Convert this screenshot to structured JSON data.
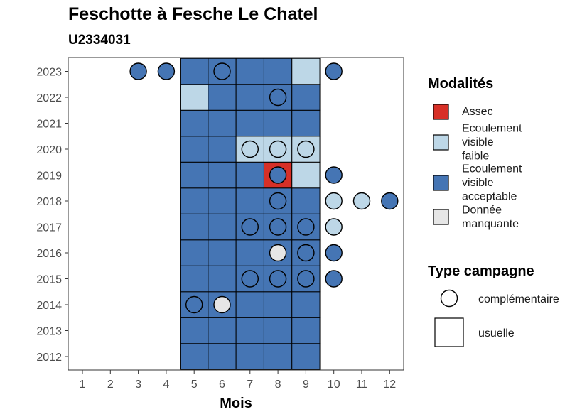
{
  "title": "Feschotte à Fesche Le Chatel",
  "subtitle": "U2334031",
  "chart_data": {
    "type": "heatmap",
    "title": "Feschotte à Fesche Le Chatel",
    "subtitle": "U2334031",
    "xlabel": "Mois",
    "ylabel": "",
    "x_ticks": [
      1,
      2,
      3,
      4,
      5,
      6,
      7,
      8,
      9,
      10,
      11,
      12
    ],
    "y_ticks": [
      2012,
      2013,
      2014,
      2015,
      2016,
      2017,
      2018,
      2019,
      2020,
      2021,
      2022,
      2023
    ],
    "colors": {
      "Assec": "#d73027",
      "Ecoulement visible faible": "#bdd7e7",
      "Ecoulement visible acceptable": "#4575b4",
      "Donnée manquante": "#e6e6e6"
    },
    "tiles_usuelle": [
      {
        "year": 2012,
        "months": [
          5,
          6,
          7,
          8,
          9
        ],
        "values": [
          "Ecoulement visible acceptable",
          "Ecoulement visible acceptable",
          "Ecoulement visible acceptable",
          "Ecoulement visible acceptable",
          "Ecoulement visible acceptable"
        ]
      },
      {
        "year": 2013,
        "months": [
          5,
          6,
          7,
          8,
          9
        ],
        "values": [
          "Ecoulement visible acceptable",
          "Ecoulement visible acceptable",
          "Ecoulement visible acceptable",
          "Ecoulement visible acceptable",
          "Ecoulement visible acceptable"
        ]
      },
      {
        "year": 2014,
        "months": [
          5,
          6,
          7,
          8,
          9
        ],
        "values": [
          "Ecoulement visible acceptable",
          "Ecoulement visible acceptable",
          "Ecoulement visible acceptable",
          "Ecoulement visible acceptable",
          "Ecoulement visible acceptable"
        ]
      },
      {
        "year": 2015,
        "months": [
          5,
          6,
          7,
          8,
          9
        ],
        "values": [
          "Ecoulement visible acceptable",
          "Ecoulement visible acceptable",
          "Ecoulement visible acceptable",
          "Ecoulement visible acceptable",
          "Ecoulement visible acceptable"
        ]
      },
      {
        "year": 2016,
        "months": [
          5,
          6,
          7,
          8,
          9
        ],
        "values": [
          "Ecoulement visible acceptable",
          "Ecoulement visible acceptable",
          "Ecoulement visible acceptable",
          "Ecoulement visible acceptable",
          "Ecoulement visible acceptable"
        ]
      },
      {
        "year": 2017,
        "months": [
          5,
          6,
          7,
          8,
          9
        ],
        "values": [
          "Ecoulement visible acceptable",
          "Ecoulement visible acceptable",
          "Ecoulement visible acceptable",
          "Ecoulement visible acceptable",
          "Ecoulement visible acceptable"
        ]
      },
      {
        "year": 2018,
        "months": [
          5,
          6,
          7,
          8,
          9
        ],
        "values": [
          "Ecoulement visible acceptable",
          "Ecoulement visible acceptable",
          "Ecoulement visible acceptable",
          "Ecoulement visible acceptable",
          "Ecoulement visible acceptable"
        ]
      },
      {
        "year": 2019,
        "months": [
          5,
          6,
          7,
          8,
          9
        ],
        "values": [
          "Ecoulement visible acceptable",
          "Ecoulement visible acceptable",
          "Ecoulement visible acceptable",
          "Assec",
          "Ecoulement visible faible"
        ]
      },
      {
        "year": 2020,
        "months": [
          5,
          6,
          7,
          8,
          9
        ],
        "values": [
          "Ecoulement visible acceptable",
          "Ecoulement visible acceptable",
          "Ecoulement visible faible",
          "Ecoulement visible faible",
          "Ecoulement visible faible"
        ]
      },
      {
        "year": 2021,
        "months": [
          5,
          6,
          7,
          8,
          9
        ],
        "values": [
          "Ecoulement visible acceptable",
          "Ecoulement visible acceptable",
          "Ecoulement visible acceptable",
          "Ecoulement visible acceptable",
          "Ecoulement visible acceptable"
        ]
      },
      {
        "year": 2022,
        "months": [
          5,
          6,
          7,
          8,
          9
        ],
        "values": [
          "Ecoulement visible faible",
          "Ecoulement visible acceptable",
          "Ecoulement visible acceptable",
          "Ecoulement visible acceptable",
          "Ecoulement visible acceptable"
        ]
      },
      {
        "year": 2023,
        "months": [
          5,
          6,
          7,
          8,
          9
        ],
        "values": [
          "Ecoulement visible acceptable",
          "Ecoulement visible acceptable",
          "Ecoulement visible acceptable",
          "Ecoulement visible acceptable",
          "Ecoulement visible faible"
        ]
      }
    ],
    "points_complementaire": [
      {
        "year": 2023,
        "month": 3,
        "value": "Ecoulement visible acceptable"
      },
      {
        "year": 2023,
        "month": 4,
        "value": "Ecoulement visible acceptable"
      },
      {
        "year": 2023,
        "month": 6,
        "value": "Ecoulement visible acceptable"
      },
      {
        "year": 2023,
        "month": 10,
        "value": "Ecoulement visible acceptable"
      },
      {
        "year": 2022,
        "month": 8,
        "value": "Ecoulement visible acceptable"
      },
      {
        "year": 2020,
        "month": 7,
        "value": "Ecoulement visible faible"
      },
      {
        "year": 2020,
        "month": 8,
        "value": "Ecoulement visible faible"
      },
      {
        "year": 2020,
        "month": 9,
        "value": "Ecoulement visible faible"
      },
      {
        "year": 2019,
        "month": 8,
        "value": "Ecoulement visible acceptable"
      },
      {
        "year": 2019,
        "month": 10,
        "value": "Ecoulement visible acceptable"
      },
      {
        "year": 2018,
        "month": 8,
        "value": "Ecoulement visible acceptable"
      },
      {
        "year": 2018,
        "month": 10,
        "value": "Ecoulement visible faible"
      },
      {
        "year": 2018,
        "month": 11,
        "value": "Ecoulement visible faible"
      },
      {
        "year": 2018,
        "month": 12,
        "value": "Ecoulement visible acceptable"
      },
      {
        "year": 2017,
        "month": 7,
        "value": "Ecoulement visible acceptable"
      },
      {
        "year": 2017,
        "month": 8,
        "value": "Ecoulement visible acceptable"
      },
      {
        "year": 2017,
        "month": 9,
        "value": "Ecoulement visible acceptable"
      },
      {
        "year": 2017,
        "month": 10,
        "value": "Ecoulement visible faible"
      },
      {
        "year": 2016,
        "month": 8,
        "value": "Donnée manquante"
      },
      {
        "year": 2016,
        "month": 9,
        "value": "Ecoulement visible acceptable"
      },
      {
        "year": 2016,
        "month": 10,
        "value": "Ecoulement visible acceptable"
      },
      {
        "year": 2015,
        "month": 7,
        "value": "Ecoulement visible acceptable"
      },
      {
        "year": 2015,
        "month": 8,
        "value": "Ecoulement visible acceptable"
      },
      {
        "year": 2015,
        "month": 9,
        "value": "Ecoulement visible acceptable"
      },
      {
        "year": 2015,
        "month": 10,
        "value": "Ecoulement visible acceptable"
      },
      {
        "year": 2014,
        "month": 5,
        "value": "Ecoulement visible acceptable"
      },
      {
        "year": 2014,
        "month": 6,
        "value": "Donnée manquante"
      }
    ],
    "legend_modalites": {
      "title": "Modalités",
      "items": [
        {
          "label_lines": [
            "Assec"
          ],
          "color": "#d73027"
        },
        {
          "label_lines": [
            "Ecoulement",
            "visible",
            "faible"
          ],
          "color": "#bdd7e7"
        },
        {
          "label_lines": [
            "Ecoulement",
            "visible",
            "acceptable"
          ],
          "color": "#4575b4"
        },
        {
          "label_lines": [
            "Donnée",
            "manquante"
          ],
          "color": "#e6e6e6"
        }
      ]
    },
    "legend_type": {
      "title": "Type campagne",
      "items": [
        {
          "label": "complémentaire",
          "shape": "circle"
        },
        {
          "label": "usuelle",
          "shape": "square"
        }
      ]
    },
    "legend_placement": "right",
    "grid": false
  }
}
